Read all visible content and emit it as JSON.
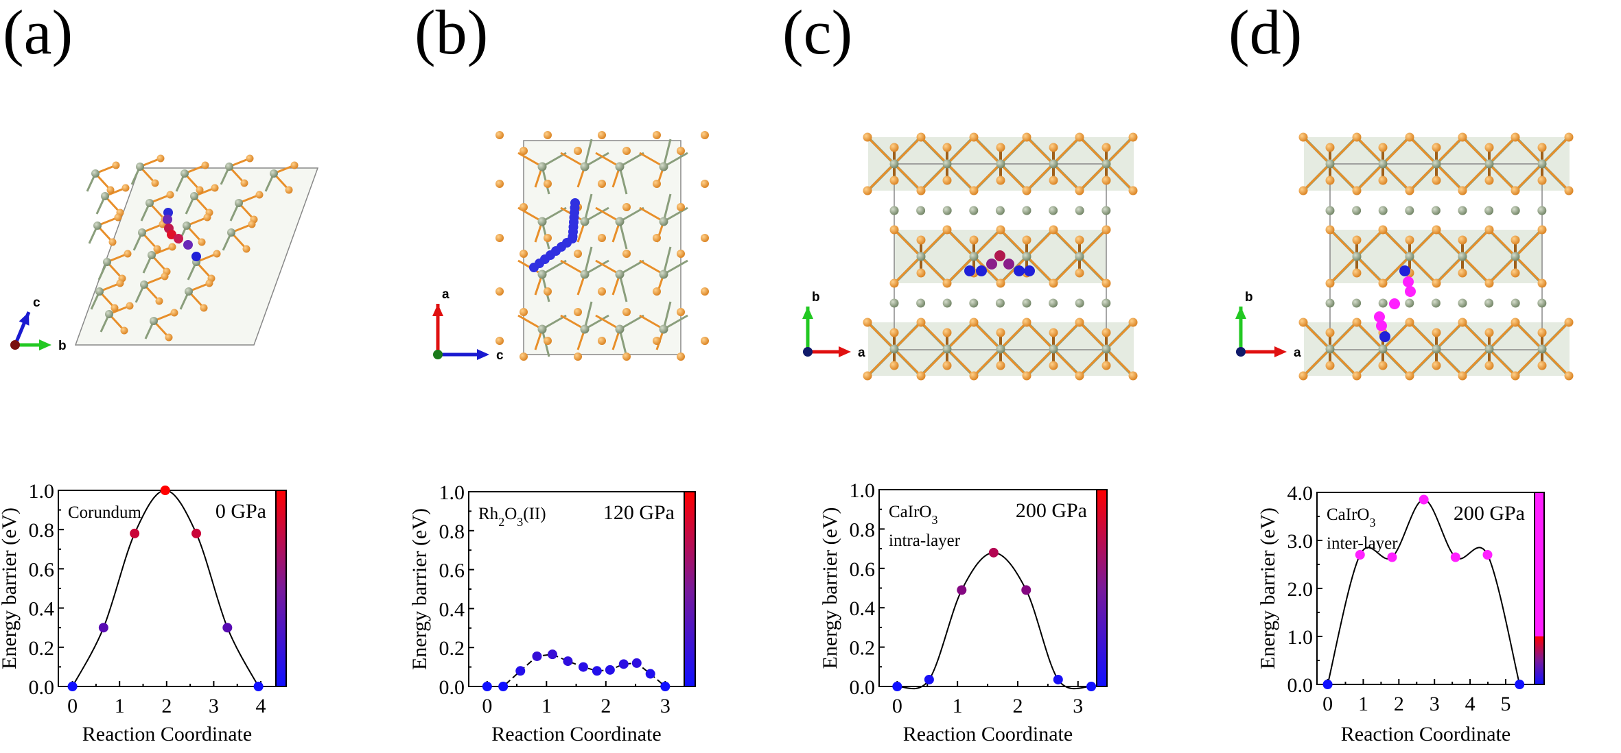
{
  "panels": [
    {
      "label": "(a)",
      "axes": {
        "vertical": "c",
        "horizontal": "b",
        "view": "a"
      }
    },
    {
      "label": "(b)",
      "axes": {
        "vertical": "a",
        "horizontal": "c",
        "view": "b"
      }
    },
    {
      "label": "(c)",
      "axes": {
        "vertical": "b",
        "horizontal": "a",
        "view": "c"
      }
    },
    {
      "label": "(d)",
      "axes": {
        "vertical": "b",
        "horizontal": "a",
        "view": "c"
      }
    }
  ],
  "colors": {
    "oxygen": "#e88f2a",
    "cation": "#8a9e7c",
    "polyhedra": "#dfe6da",
    "low": "#1010ff",
    "high": "#ff0000",
    "beyond": "#ff20ff"
  },
  "chart_data": [
    {
      "type": "line",
      "title": "Corundum",
      "title_parts": [
        {
          "t": "Corundum"
        }
      ],
      "pressure": "0 GPa",
      "xlabel": "Reaction Coordinate",
      "ylabel": "Energy barrier (eV)",
      "xlim": [
        -0.3,
        4.32
      ],
      "ylim": [
        0,
        1.0
      ],
      "xticks": [
        0,
        1,
        2,
        3,
        4
      ],
      "xtick_labels": [
        "0",
        "1",
        "2",
        "3",
        "4"
      ],
      "yticks": [
        0,
        0.2,
        0.4,
        0.6,
        0.8,
        1.0
      ],
      "ytick_labels": [
        "0.0",
        "0.2",
        "0.4",
        "0.6",
        "0.8",
        "1.0"
      ],
      "line_style": "smooth",
      "colorbar_max": 1.0,
      "x": [
        0,
        0.66,
        1.32,
        1.97,
        2.63,
        3.29,
        3.95
      ],
      "y": [
        0,
        0.3,
        0.78,
        1.0,
        0.78,
        0.3,
        0
      ]
    },
    {
      "type": "line",
      "title": "Rh2O3(II)",
      "title_parts": [
        {
          "t": "Rh"
        },
        {
          "t": "2",
          "sub": true
        },
        {
          "t": "O"
        },
        {
          "t": "3",
          "sub": true
        },
        {
          "t": "(II)"
        }
      ],
      "pressure": "120 GPa",
      "xlabel": "Reaction Coordinate",
      "ylabel": "Energy barrier (eV)",
      "xlim": [
        -0.31,
        3.32
      ],
      "ylim": [
        0,
        1.0
      ],
      "xticks": [
        0,
        1,
        2,
        3
      ],
      "xtick_labels": [
        "0",
        "1",
        "2",
        "3"
      ],
      "yticks": [
        0,
        0.2,
        0.4,
        0.6,
        0.8,
        1.0
      ],
      "ytick_labels": [
        "0.0",
        "0.2",
        "0.4",
        "0.6",
        "0.8",
        "1.0"
      ],
      "line_style": "dashed",
      "colorbar_max": 1.0,
      "x": [
        0,
        0.27,
        0.56,
        0.84,
        1.1,
        1.36,
        1.62,
        1.85,
        2.07,
        2.3,
        2.52,
        2.75,
        3.0
      ],
      "y": [
        0,
        0,
        0.08,
        0.155,
        0.165,
        0.13,
        0.1,
        0.08,
        0.085,
        0.115,
        0.12,
        0.065,
        0
      ]
    },
    {
      "type": "line",
      "title": "CaIrO3 intra-layer",
      "title_parts": [
        {
          "t": "CaIrO"
        },
        {
          "t": "3",
          "sub": true
        }
      ],
      "subtitle": "intra-layer",
      "pressure": "200 GPa",
      "xlabel": "Reaction Coordinate",
      "ylabel": "Energy barrier (eV)",
      "xlim": [
        -0.3,
        3.31
      ],
      "ylim": [
        0,
        1.0
      ],
      "xticks": [
        0,
        1,
        2,
        3
      ],
      "xtick_labels": [
        "0",
        "1",
        "2",
        "3"
      ],
      "yticks": [
        0,
        0.2,
        0.4,
        0.6,
        0.8,
        1.0
      ],
      "ytick_labels": [
        "0.0",
        "0.2",
        "0.4",
        "0.6",
        "0.8",
        "1.0"
      ],
      "line_style": "smooth",
      "colorbar_max": 1.0,
      "x": [
        0,
        0.53,
        1.07,
        1.6,
        2.14,
        2.67,
        3.22
      ],
      "y": [
        0,
        0.035,
        0.49,
        0.68,
        0.49,
        0.035,
        0
      ]
    },
    {
      "type": "line",
      "title": "CaIrO3 inter-layer",
      "title_parts": [
        {
          "t": "CaIrO"
        },
        {
          "t": "3",
          "sub": true
        }
      ],
      "subtitle": "inter-layer",
      "pressure": "200 GPa",
      "xlabel": "Reaction Coordinate",
      "ylabel": "Energy barrier (eV)",
      "xlim": [
        -0.3,
        5.81
      ],
      "ylim": [
        0,
        4.0
      ],
      "xticks": [
        0,
        1,
        2,
        3,
        4,
        5
      ],
      "xtick_labels": [
        "0",
        "1",
        "2",
        "3",
        "4",
        "5"
      ],
      "yticks": [
        0,
        1,
        2,
        3,
        4
      ],
      "ytick_labels": [
        "0.0",
        "1.0",
        "2.0",
        "3.0",
        "4.0"
      ],
      "line_style": "smooth",
      "colorbar_max": 1.0,
      "x": [
        0,
        0.91,
        1.81,
        2.7,
        3.59,
        4.49,
        5.39
      ],
      "y": [
        0,
        2.7,
        2.65,
        3.85,
        2.65,
        2.7,
        0
      ]
    }
  ]
}
